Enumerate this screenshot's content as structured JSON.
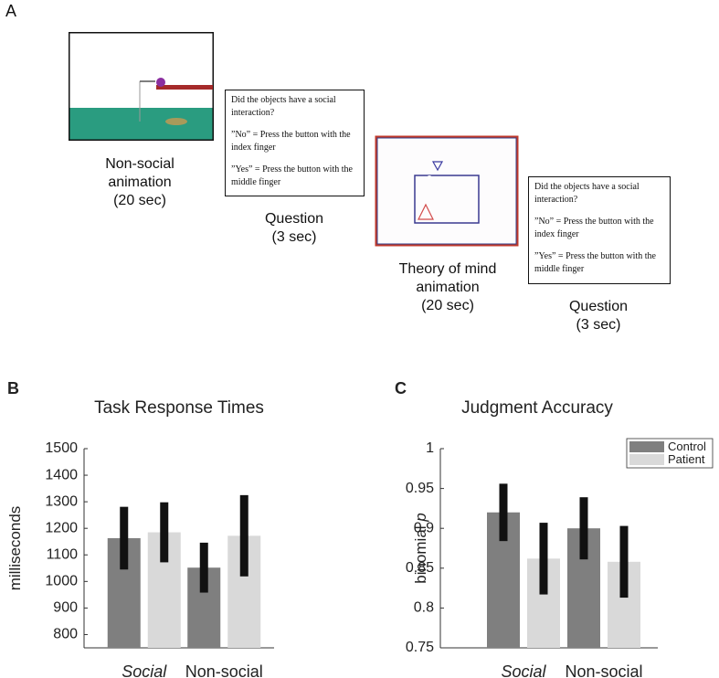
{
  "panel_a": {
    "label": "A",
    "steps": [
      {
        "caption": [
          "Non-social",
          "animation",
          "(20 sec)"
        ]
      },
      {
        "question": [
          "Did the objects have a social interaction?",
          "”No” = Press the button with the index finger",
          "”Yes” = Press the button with the middle finger"
        ],
        "caption": [
          "Question",
          "(3 sec)"
        ]
      },
      {
        "caption": [
          "Theory of mind",
          "animation",
          "(20 sec)"
        ]
      },
      {
        "question": [
          "Did the objects have a social interaction?",
          "”No” = Press the button with the index finger",
          "”Yes” = Press the button with the middle finger"
        ],
        "caption": [
          "Question",
          "(3 sec)"
        ]
      }
    ]
  },
  "chart_data": [
    {
      "type": "bar",
      "panel_label": "B",
      "title": "Task Response Times",
      "ylabel": "milliseconds",
      "categories": [
        "Social",
        "Non-social"
      ],
      "series": [
        {
          "color": "#7f7f7f",
          "values": [
            1163,
            1052
          ],
          "errors": [
            118,
            94
          ]
        },
        {
          "color": "#d9d9d9",
          "values": [
            1185,
            1172
          ],
          "errors": [
            113,
            153
          ]
        }
      ],
      "ylim": [
        750,
        1500
      ],
      "yticks": [
        800,
        900,
        1000,
        1100,
        1200,
        1300,
        1400,
        1500
      ]
    },
    {
      "type": "bar",
      "panel_label": "C",
      "title": "Judgment Accuracy",
      "ylabel": "binomial",
      "ylabel_symbol": "p",
      "categories": [
        "Social",
        "Non-social"
      ],
      "series": [
        {
          "name": "Control",
          "color": "#7f7f7f",
          "values": [
            0.92,
            0.9
          ],
          "errors": [
            0.036,
            0.039
          ]
        },
        {
          "name": "Patient",
          "color": "#d9d9d9",
          "values": [
            0.862,
            0.858
          ],
          "errors": [
            0.045,
            0.045
          ]
        }
      ],
      "ylim": [
        0.75,
        1
      ],
      "yticks": [
        0.75,
        0.8,
        0.85,
        0.9,
        0.95,
        1
      ],
      "legend": "upper right"
    }
  ]
}
